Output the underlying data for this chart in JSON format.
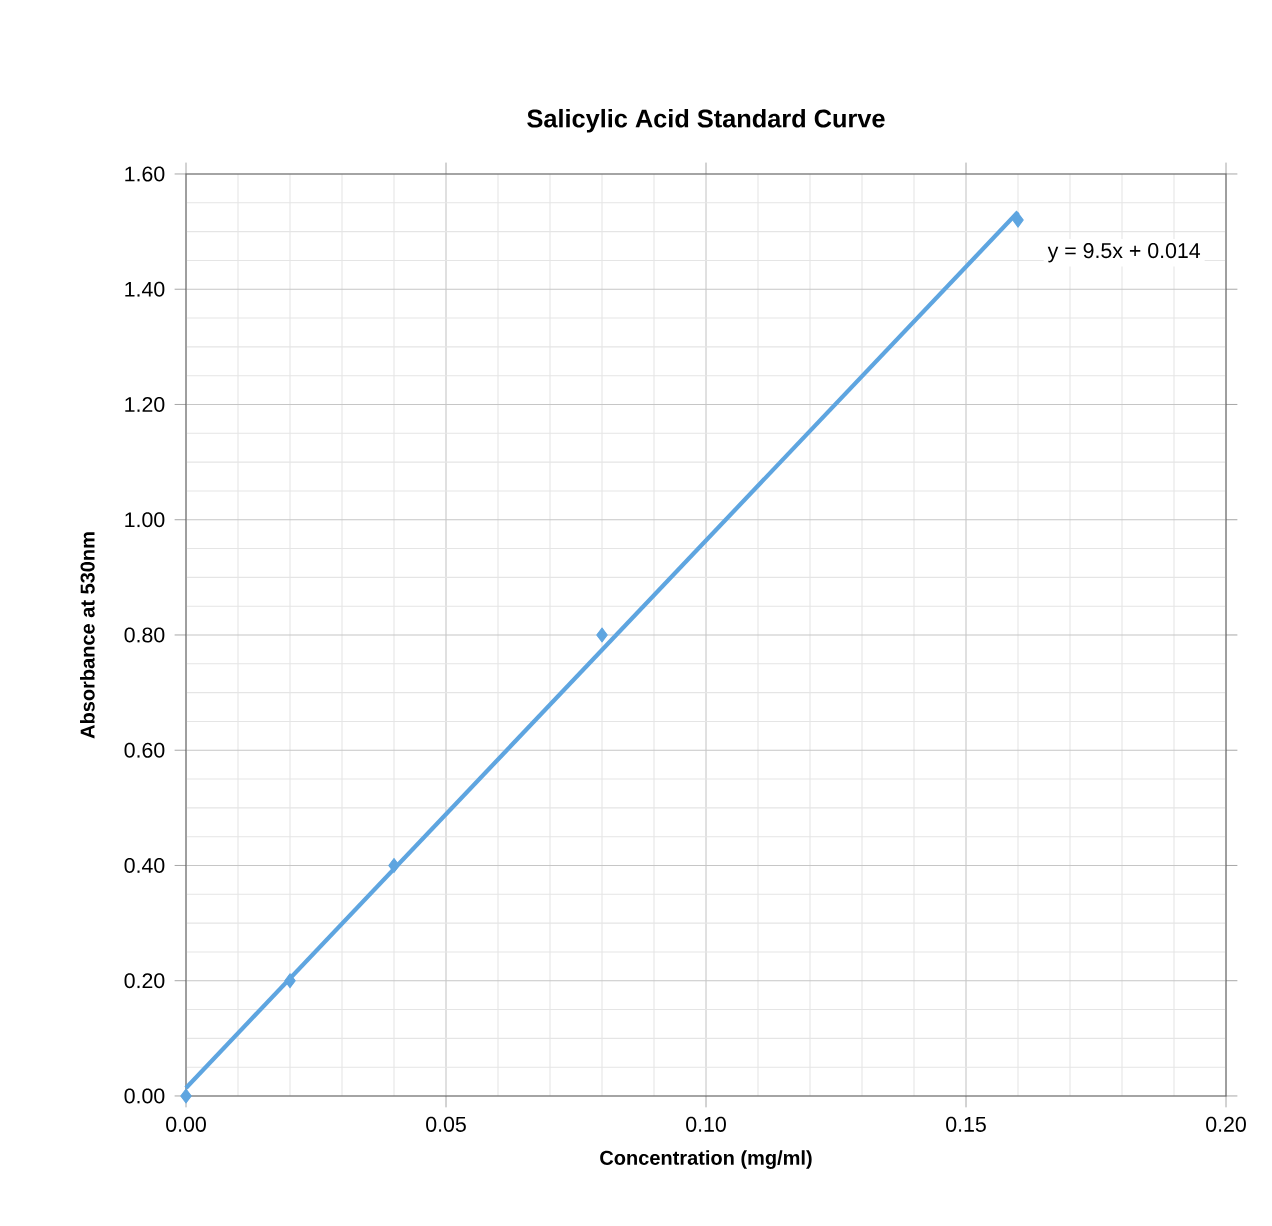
{
  "chart_data": {
    "type": "scatter",
    "title": "Salicylic Acid Standard Curve",
    "xlabel": "Concentration (mg/ml)",
    "ylabel": "Absorbance at 530nm",
    "x": [
      0,
      0.02,
      0.04,
      0.08,
      0.16
    ],
    "series": [
      {
        "color": "#5ea5e0",
        "marker": "diamond",
        "values": [
          0,
          0.2,
          0.4,
          0.8,
          1.52
        ]
      },
      {
        "type": "line",
        "color": "#5ea5e0",
        "marker": "none",
        "line_style": "solid",
        "x": [
          0,
          0.16
        ],
        "values": [
          0.014,
          1.534
        ]
      }
    ],
    "annotations": [
      "y = 9.5x + 0.014"
    ],
    "xlim": [
      0,
      0.2
    ],
    "xticks": [
      {
        "value": 0,
        "label": "0.00"
      },
      0.05,
      {
        "value": 0.1,
        "label": "0.10"
      },
      0.15,
      {
        "value": 0.2,
        "label": "0.20"
      }
    ],
    "ylim": [
      0,
      1.6
    ],
    "yticks": [
      {
        "value": 0,
        "label": "0.00"
      },
      {
        "value": 0.2,
        "label": "0.20"
      },
      {
        "value": 0.4,
        "label": "0.40"
      },
      {
        "value": 0.6,
        "label": "0.60"
      },
      {
        "value": 0.8,
        "label": "0.80"
      },
      {
        "value": 1,
        "label": "1.00"
      },
      {
        "value": 1.2,
        "label": "1.20"
      },
      {
        "value": 1.4,
        "label": "1.40"
      },
      {
        "value": 1.6,
        "label": "1.60"
      }
    ],
    "grid": true
  }
}
